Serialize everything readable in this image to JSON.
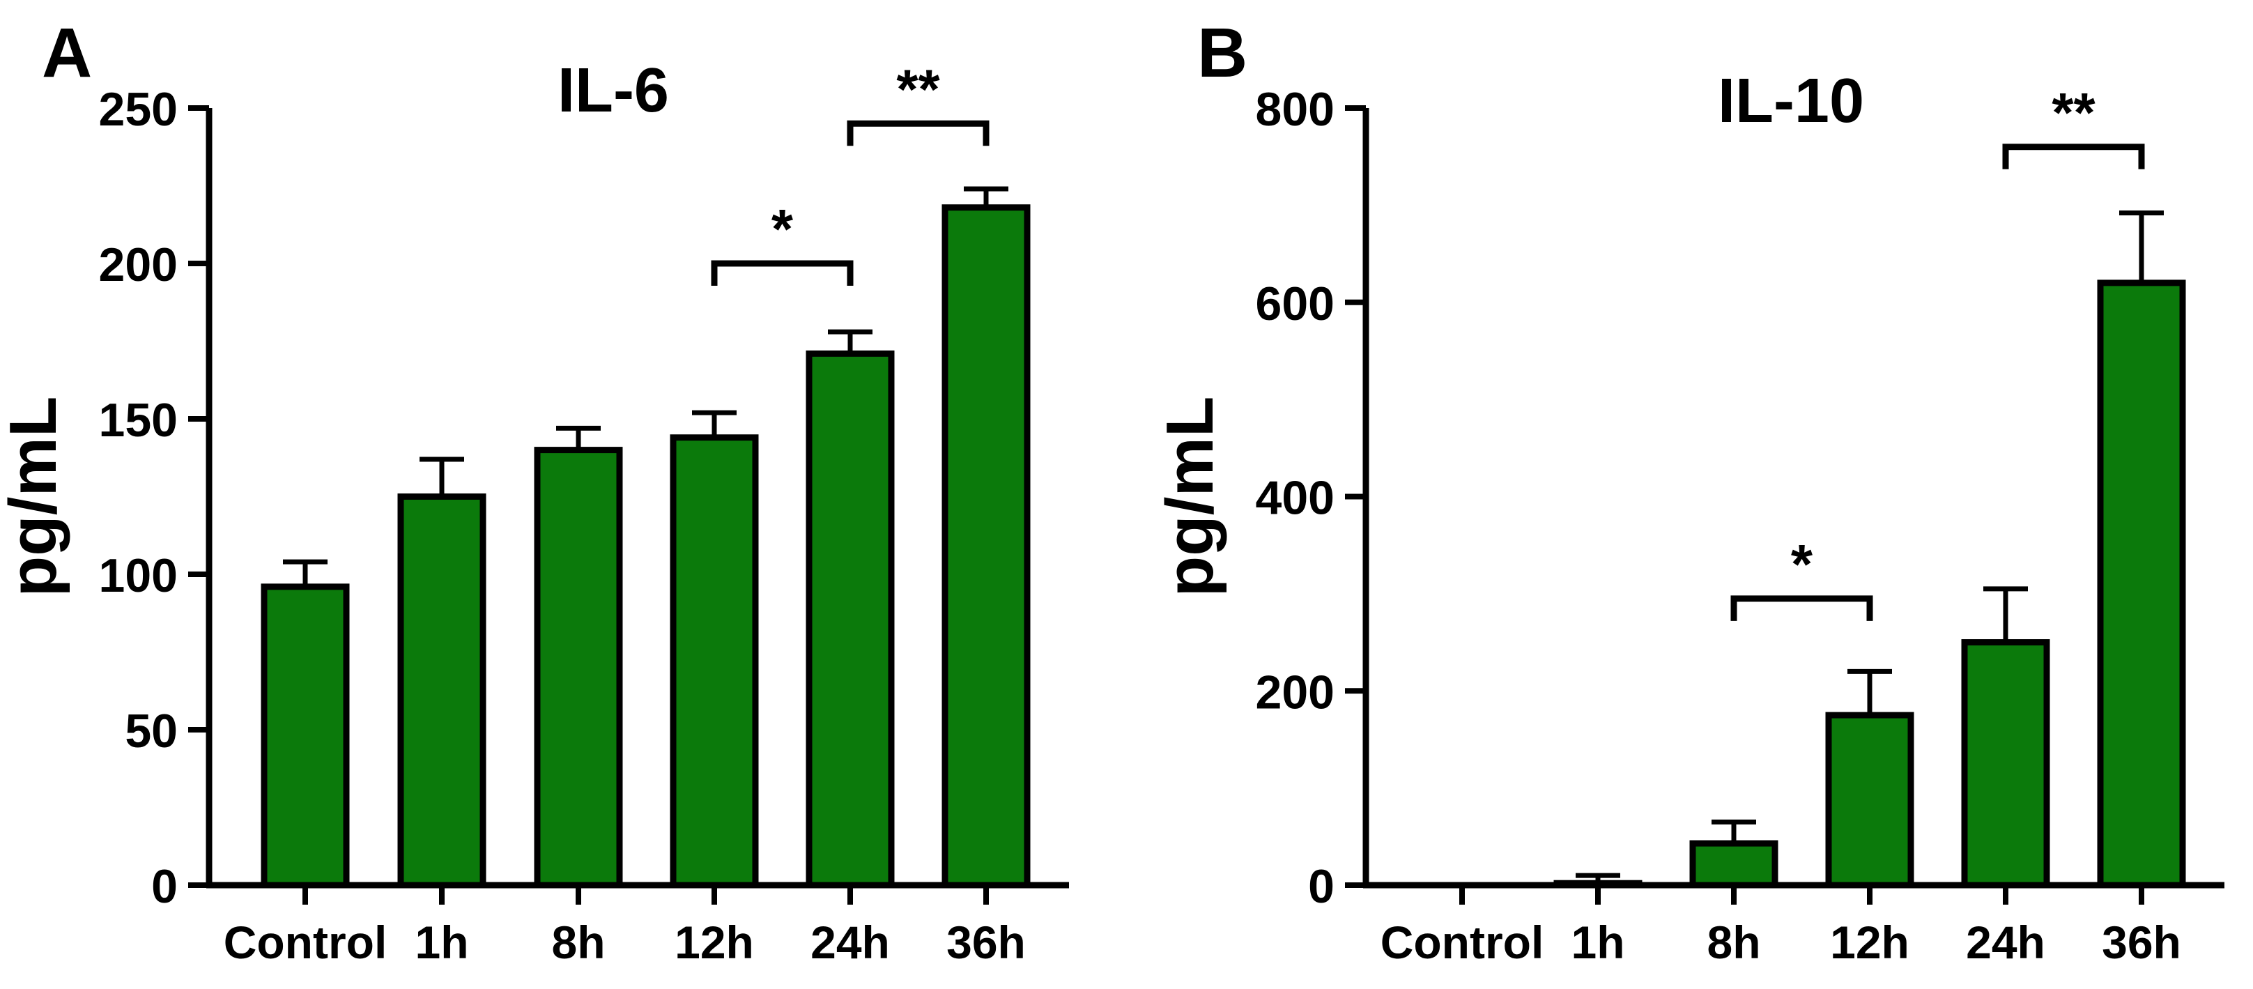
{
  "figure": {
    "bar_color": "#0b7a0b",
    "stroke_color": "#000000"
  },
  "chart_data": [
    {
      "type": "bar",
      "panel_label": "A",
      "title": "IL-6",
      "xlabel": "",
      "ylabel": "pg/mL",
      "ylim": [
        0,
        250
      ],
      "yticks": [
        0,
        50,
        100,
        150,
        200,
        250
      ],
      "categories": [
        "Control",
        "1h",
        "8h",
        "12h",
        "24h",
        "36h"
      ],
      "values": [
        96,
        125,
        140,
        144,
        171,
        218
      ],
      "errors": [
        8,
        12,
        7,
        8,
        7,
        6
      ],
      "significance": [
        {
          "from": "12h",
          "to": "24h",
          "label": "*",
          "y": 200
        },
        {
          "from": "24h",
          "to": "36h",
          "label": "**",
          "y": 245
        }
      ]
    },
    {
      "type": "bar",
      "panel_label": "B",
      "title": "IL-10",
      "xlabel": "",
      "ylabel": "pg/mL",
      "ylim": [
        0,
        800
      ],
      "yticks": [
        0,
        200,
        400,
        600,
        800
      ],
      "categories": [
        "Control",
        "1h",
        "8h",
        "12h",
        "24h",
        "36h"
      ],
      "values": [
        0,
        2,
        43,
        175,
        250,
        620
      ],
      "errors": [
        0,
        8,
        22,
        45,
        55,
        72
      ],
      "significance": [
        {
          "from": "8h",
          "to": "12h",
          "label": "*",
          "y": 295
        },
        {
          "from": "24h",
          "to": "36h",
          "label": "**",
          "y": 760
        }
      ]
    }
  ]
}
